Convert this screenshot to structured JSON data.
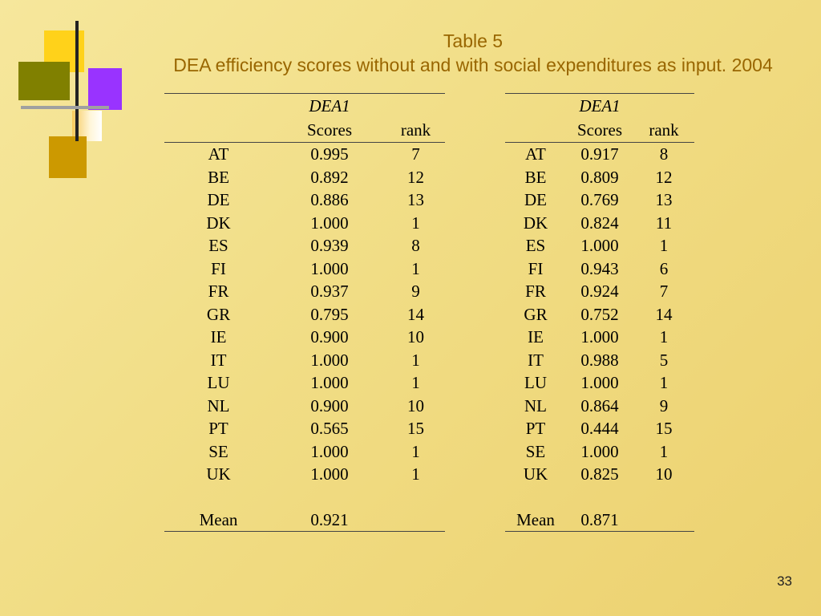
{
  "slide": {
    "title_line1": "Table 5",
    "title_line2": "DEA efficiency scores without and with social expenditures as input. 2004",
    "page_number": "33"
  },
  "colors": {
    "background": "#f3e08c",
    "title": "#996600",
    "deco_yellow": "#ffd21a",
    "deco_olive": "#808000",
    "deco_purple": "#9933ff",
    "deco_gold": "#cc9900"
  },
  "tables": {
    "left": {
      "group_label": "DEA1",
      "scores_header": "Scores",
      "rank_header": "rank",
      "rows": [
        {
          "country": "AT",
          "score": "0.995",
          "rank": "7"
        },
        {
          "country": "BE",
          "score": "0.892",
          "rank": "12"
        },
        {
          "country": "DE",
          "score": "0.886",
          "rank": "13"
        },
        {
          "country": "DK",
          "score": "1.000",
          "rank": "1"
        },
        {
          "country": "ES",
          "score": "0.939",
          "rank": "8"
        },
        {
          "country": "FI",
          "score": "1.000",
          "rank": "1"
        },
        {
          "country": "FR",
          "score": "0.937",
          "rank": "9"
        },
        {
          "country": "GR",
          "score": "0.795",
          "rank": "14"
        },
        {
          "country": "IE",
          "score": "0.900",
          "rank": "10"
        },
        {
          "country": "IT",
          "score": "1.000",
          "rank": "1"
        },
        {
          "country": "LU",
          "score": "1.000",
          "rank": "1"
        },
        {
          "country": "NL",
          "score": "0.900",
          "rank": "10"
        },
        {
          "country": "PT",
          "score": "0.565",
          "rank": "15"
        },
        {
          "country": "SE",
          "score": "1.000",
          "rank": "1"
        },
        {
          "country": "UK",
          "score": "1.000",
          "rank": "1"
        }
      ],
      "mean_label": "Mean",
      "mean_value": "0.921"
    },
    "right": {
      "group_label": "DEA1",
      "scores_header": "Scores",
      "rank_header": "rank",
      "rows": [
        {
          "country": "AT",
          "score": "0.917",
          "rank": "8"
        },
        {
          "country": "BE",
          "score": "0.809",
          "rank": "12"
        },
        {
          "country": "DE",
          "score": "0.769",
          "rank": "13"
        },
        {
          "country": "DK",
          "score": "0.824",
          "rank": "11"
        },
        {
          "country": "ES",
          "score": "1.000",
          "rank": "1"
        },
        {
          "country": "FI",
          "score": "0.943",
          "rank": "6"
        },
        {
          "country": "FR",
          "score": "0.924",
          "rank": "7"
        },
        {
          "country": "GR",
          "score": "0.752",
          "rank": "14"
        },
        {
          "country": "IE",
          "score": "1.000",
          "rank": "1"
        },
        {
          "country": "IT",
          "score": "0.988",
          "rank": "5"
        },
        {
          "country": "LU",
          "score": "1.000",
          "rank": "1"
        },
        {
          "country": "NL",
          "score": "0.864",
          "rank": "9"
        },
        {
          "country": "PT",
          "score": "0.444",
          "rank": "15"
        },
        {
          "country": "SE",
          "score": "1.000",
          "rank": "1"
        },
        {
          "country": "UK",
          "score": "0.825",
          "rank": "10"
        }
      ],
      "mean_label": "Mean",
      "mean_value": "0.871"
    }
  }
}
